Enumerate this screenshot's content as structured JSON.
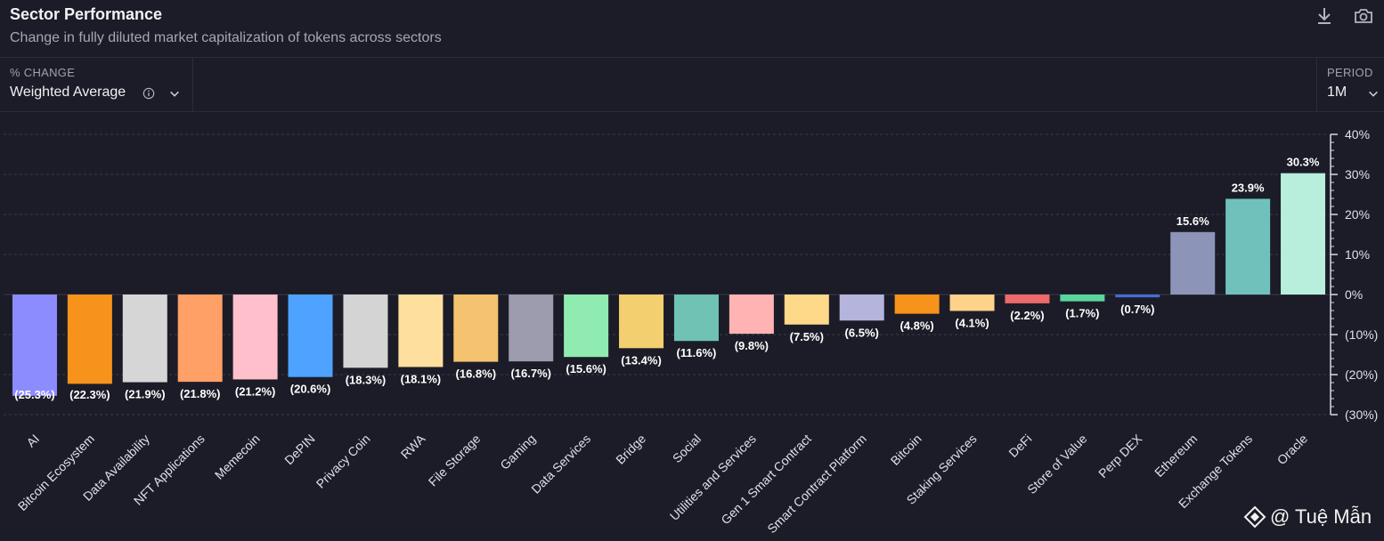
{
  "header": {
    "title": "Sector Performance",
    "subtitle": "Change in fully diluted market capitalization of tokens across sectors",
    "download_icon": "download-icon",
    "camera_icon": "camera-icon"
  },
  "controls": {
    "change_label": "% CHANGE",
    "change_value": "Weighted Average",
    "info_icon": "info-icon",
    "period_label": "PERIOD",
    "period_value": "1M"
  },
  "watermark": {
    "text": "@ Tuệ Mẫn",
    "logo_icon": "diamond-logo-icon"
  },
  "chart_data": {
    "type": "bar",
    "title": "",
    "xlabel": "",
    "ylabel": "",
    "ylim": [
      -30,
      40
    ],
    "yticks": [
      "40%",
      "30%",
      "20%",
      "10%",
      "0%",
      "(10%)",
      "(20%)",
      "(30%)"
    ],
    "grid": true,
    "categories": [
      "AI",
      "Bitcoin Ecosystem",
      "Data Availability",
      "NFT Applications",
      "Memecoin",
      "DePIN",
      "Privacy Coin",
      "RWA",
      "File Storage",
      "Gaming",
      "Data Services",
      "Bridge",
      "Social",
      "Utilities and Services",
      "Gen 1 Smart Contract",
      "Smart Contract Platform",
      "Bitcoin",
      "Staking Services",
      "DeFi",
      "Store of Value",
      "Perp DEX",
      "Ethereum",
      "Exchange Tokens",
      "Oracle"
    ],
    "values": [
      -25.3,
      -22.3,
      -21.9,
      -21.8,
      -21.2,
      -20.6,
      -18.3,
      -18.1,
      -16.8,
      -16.7,
      -15.6,
      -13.4,
      -11.6,
      -9.8,
      -7.5,
      -6.5,
      -4.8,
      -4.1,
      -2.2,
      -1.7,
      -0.7,
      15.6,
      23.9,
      30.3
    ],
    "labels": [
      "(25.3%)",
      "(22.3%)",
      "(21.9%)",
      "(21.8%)",
      "(21.2%)",
      "(20.6%)",
      "(18.3%)",
      "(18.1%)",
      "(16.8%)",
      "(16.7%)",
      "(15.6%)",
      "(13.4%)",
      "(11.6%)",
      "(9.8%)",
      "(7.5%)",
      "(6.5%)",
      "(4.8%)",
      "(4.1%)",
      "(2.2%)",
      "(1.7%)",
      "(0.7%)",
      "15.6%",
      "23.9%",
      "30.3%"
    ],
    "colors": [
      "#8c8cff",
      "#f7931a",
      "#d6d6d6",
      "#ffa066",
      "#ffc0cb",
      "#4da3ff",
      "#d4d4d4",
      "#ffdf9e",
      "#f5c270",
      "#9c9cae",
      "#90ebb0",
      "#f3cf70",
      "#6fc2b4",
      "#ffb3b3",
      "#ffd98a",
      "#b4b4dc",
      "#f7931a",
      "#ffd28a",
      "#ec6a6a",
      "#5ad69c",
      "#4a6bd6",
      "#8c94b8",
      "#6fc2bc",
      "#b8eedc"
    ]
  }
}
